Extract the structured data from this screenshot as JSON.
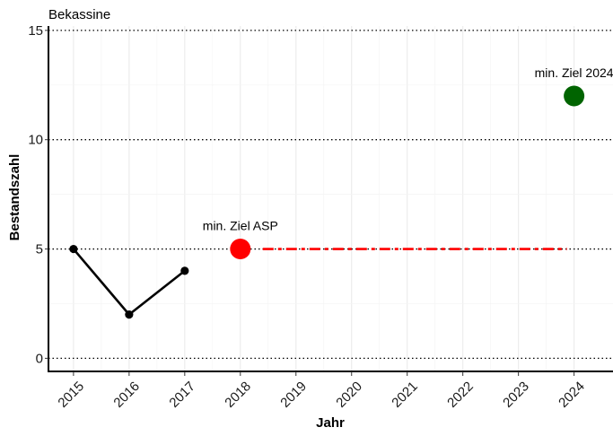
{
  "chart_data": {
    "type": "line",
    "title": "Bekassine",
    "xlabel": "Jahr",
    "ylabel": "Bestandszahl",
    "xlim": [
      2014.55,
      2024.7
    ],
    "ylim": [
      -0.6,
      15.2
    ],
    "x_ticks": [
      "2015",
      "2016",
      "2017",
      "2018",
      "2019",
      "2020",
      "2021",
      "2022",
      "2023",
      "2024"
    ],
    "y_ticks": [
      0,
      5,
      10,
      15
    ],
    "y_tick_labels": [
      "0",
      "5",
      "10",
      "15"
    ],
    "grid": true,
    "dotted_reference_lines_y": [
      0,
      5,
      10,
      15
    ],
    "series": [
      {
        "kind": "observed",
        "color": "#000000",
        "points": [
          {
            "x": 2015,
            "y": 5
          },
          {
            "x": 2016,
            "y": 2
          },
          {
            "x": 2017,
            "y": 4
          }
        ]
      }
    ],
    "targets": [
      {
        "label": "min. Ziel ASP",
        "x": 2018,
        "y": 5,
        "color": "#ff0000"
      },
      {
        "label": "min. Ziel 2024",
        "x": 2024,
        "y": 12,
        "color": "#006400"
      }
    ],
    "target_line": {
      "from_year": 2018,
      "to_year": 2024,
      "y": 5,
      "color": "#ff0000",
      "style": "dash-dot"
    }
  }
}
